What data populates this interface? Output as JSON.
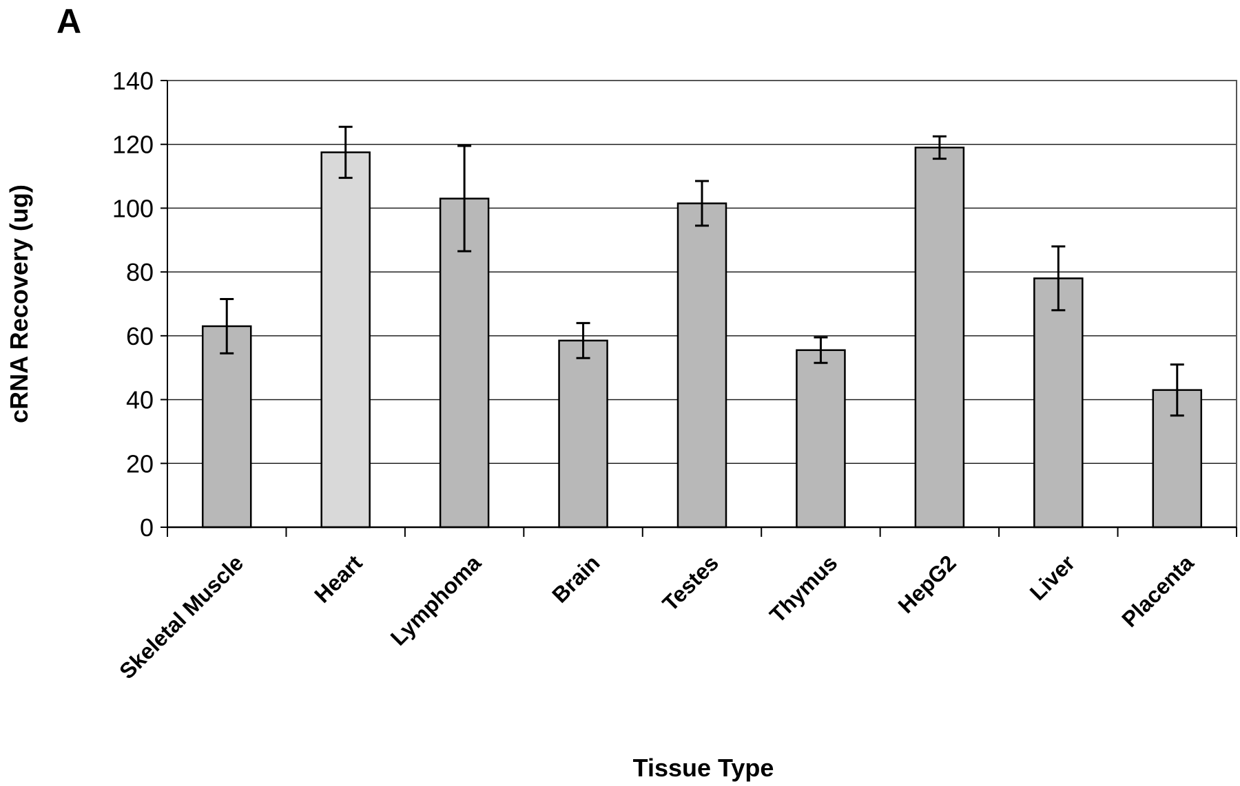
{
  "panel_label": "A",
  "chart_data": {
    "type": "bar",
    "title": "",
    "xlabel": "Tissue Type",
    "ylabel": "cRNA Recovery (ug)",
    "ylim": [
      0,
      140
    ],
    "yticks": [
      0,
      20,
      40,
      60,
      80,
      100,
      120,
      140
    ],
    "grid": true,
    "categories": [
      "Skeletal Muscle",
      "Heart",
      "Lymphoma",
      "Brain",
      "Testes",
      "Thymus",
      "HepG2",
      "Liver",
      "Placenta"
    ],
    "values": [
      63,
      117.5,
      103,
      58.5,
      101.5,
      55.5,
      119,
      78,
      43
    ],
    "errors": [
      8.5,
      8,
      16.5,
      5.5,
      7,
      4,
      3.5,
      10,
      8
    ],
    "colors": [
      "#b8b8b8",
      "#d9d9d9",
      "#b8b8b8",
      "#b8b8b8",
      "#b8b8b8",
      "#b8b8b8",
      "#b8b8b8",
      "#b8b8b8",
      "#b8b8b8"
    ]
  }
}
